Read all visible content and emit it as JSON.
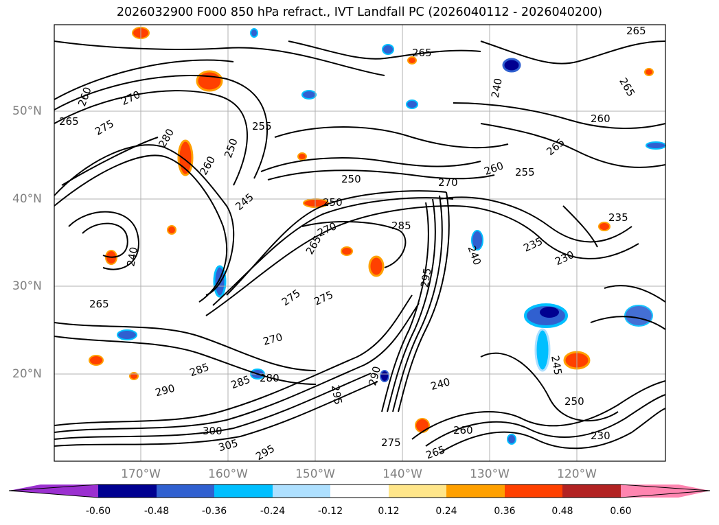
{
  "title": "2026032900 F000 850 hPa refract., IVT Landfall PC (2026040112 - 2026040200)",
  "latitude_labels": [
    "50°N",
    "40°N",
    "30°N",
    "20°N"
  ],
  "longitude_labels": [
    "170°W",
    "160°W",
    "150°W",
    "140°W",
    "130°W",
    "120°W"
  ],
  "colorbar": {
    "ticks": [
      "-0.60",
      "-0.48",
      "-0.36",
      "-0.24",
      "-0.12",
      "0.12",
      "0.24",
      "0.36",
      "0.48",
      "0.60"
    ],
    "colors": [
      "#9b30d0",
      "#000090",
      "#3060d0",
      "#00bfff",
      "#aee0ff",
      "#ffffff",
      "#ffe68a",
      "#ffa000",
      "#ff4000",
      "#b22222",
      "#ff85b0"
    ]
  },
  "contour_labels": [
    "265",
    "265",
    "270",
    "260",
    "265",
    "275",
    "280",
    "255",
    "250",
    "260",
    "245",
    "250",
    "270",
    "260",
    "255",
    "235",
    "240",
    "270",
    "265",
    "285",
    "240",
    "235",
    "230",
    "265",
    "275",
    "275",
    "270",
    "285",
    "285",
    "290",
    "295",
    "290",
    "295",
    "240",
    "245",
    "250",
    "300",
    "305",
    "295",
    "275",
    "265",
    "260",
    "280",
    "240",
    "230",
    "265",
    "260",
    "250",
    "265"
  ]
}
